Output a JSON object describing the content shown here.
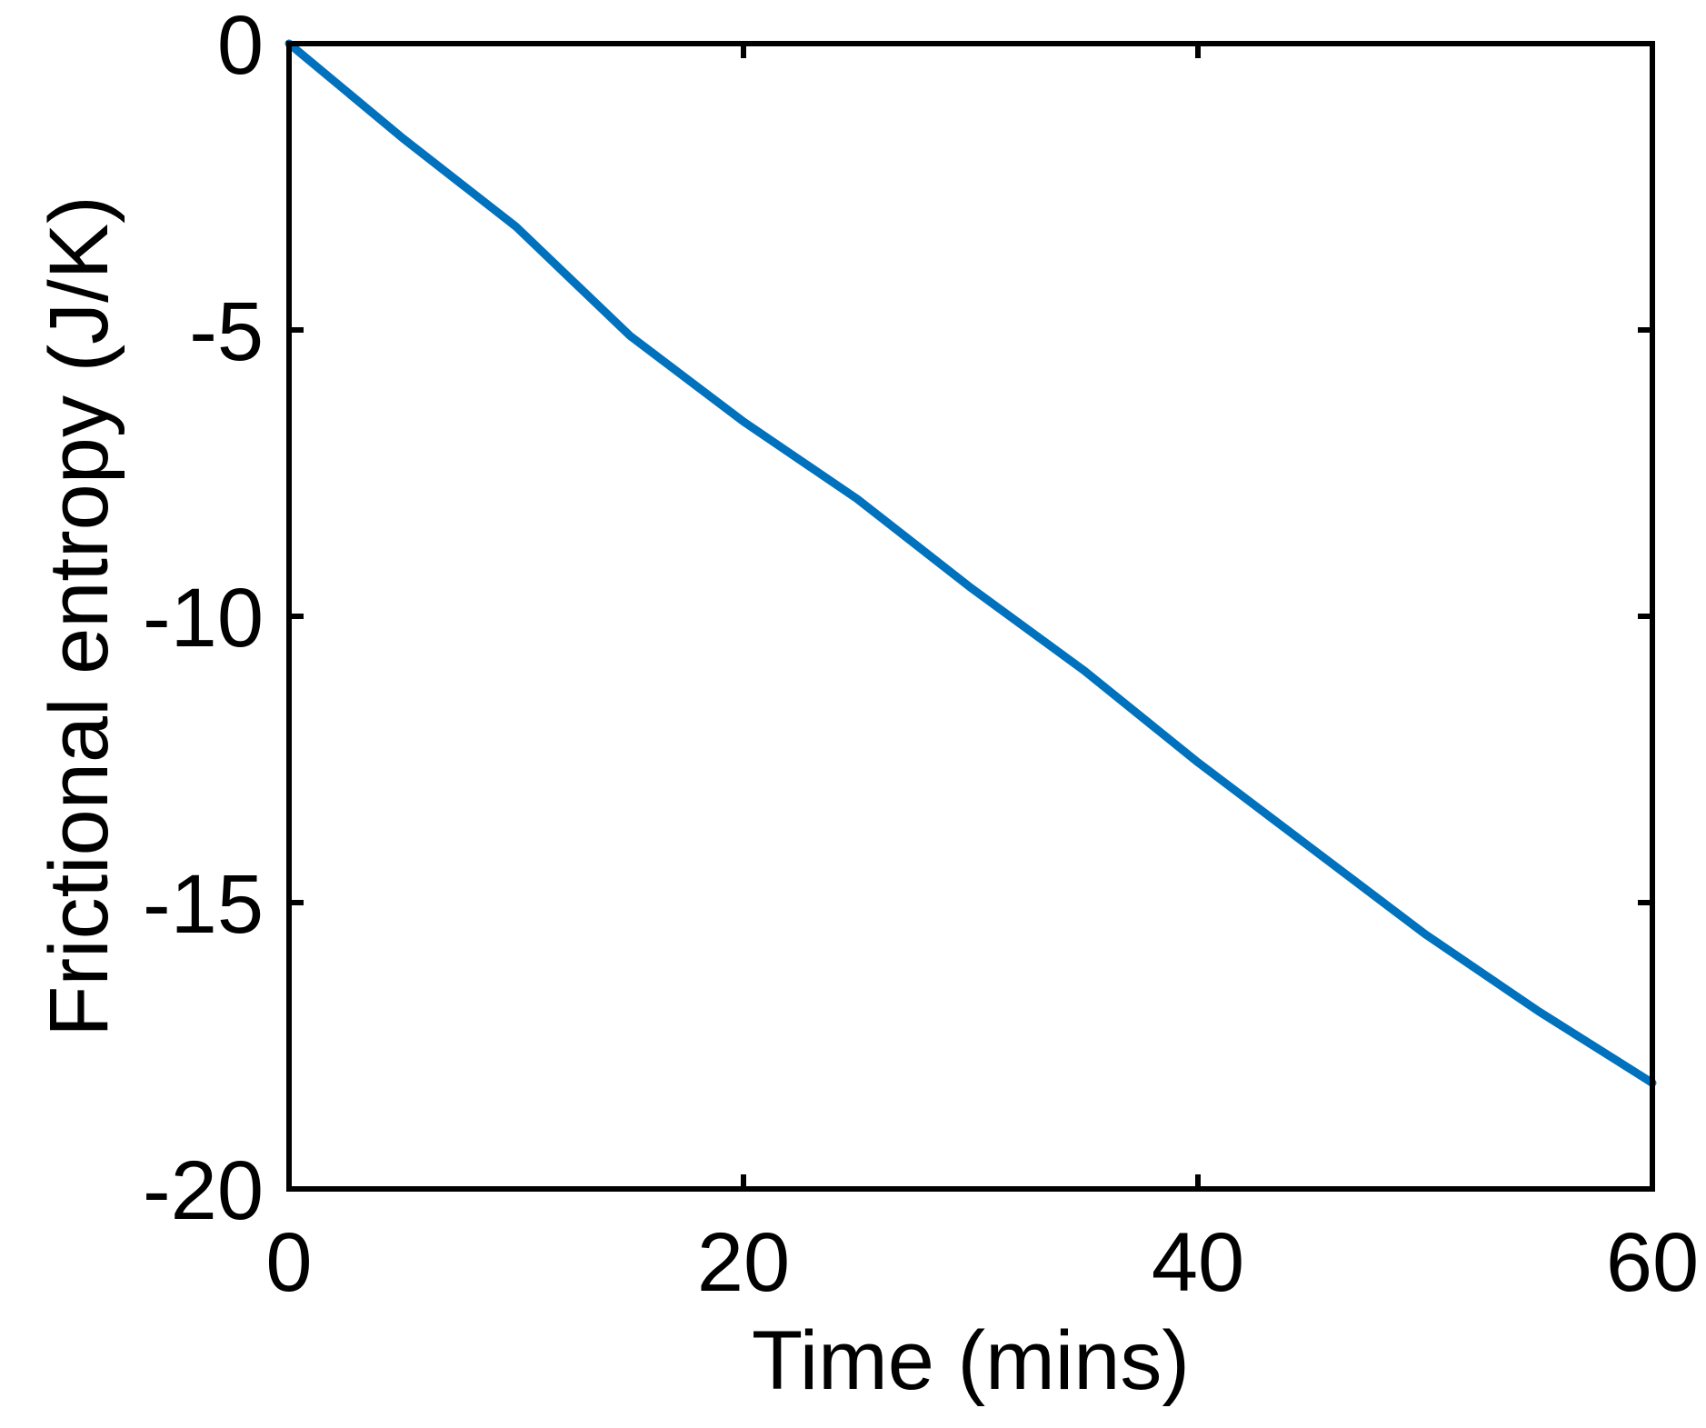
{
  "chart_data": {
    "type": "line",
    "title": "",
    "xlabel": "Time (mins)",
    "ylabel": "Frictional entropy (J/K)",
    "xlim": [
      0,
      60
    ],
    "ylim": [
      -20,
      0
    ],
    "xticks": [
      0,
      20,
      40,
      60
    ],
    "yticks": [
      0,
      -5,
      -10,
      -15,
      -20
    ],
    "xtick_labels": [
      "0",
      "20",
      "40",
      "60"
    ],
    "ytick_labels": [
      "0",
      "-5",
      "-10",
      "-15",
      "-20"
    ],
    "grid": false,
    "series": [
      {
        "color": "#0072BD",
        "x": [
          0,
          5,
          10,
          15,
          20,
          25,
          30,
          35,
          40,
          45,
          50,
          55,
          60
        ],
        "y": [
          0,
          -1.65,
          -3.2,
          -5.1,
          -6.6,
          -7.95,
          -9.5,
          -10.95,
          -12.55,
          -14.05,
          -15.55,
          -16.9,
          -18.15
        ]
      }
    ]
  }
}
